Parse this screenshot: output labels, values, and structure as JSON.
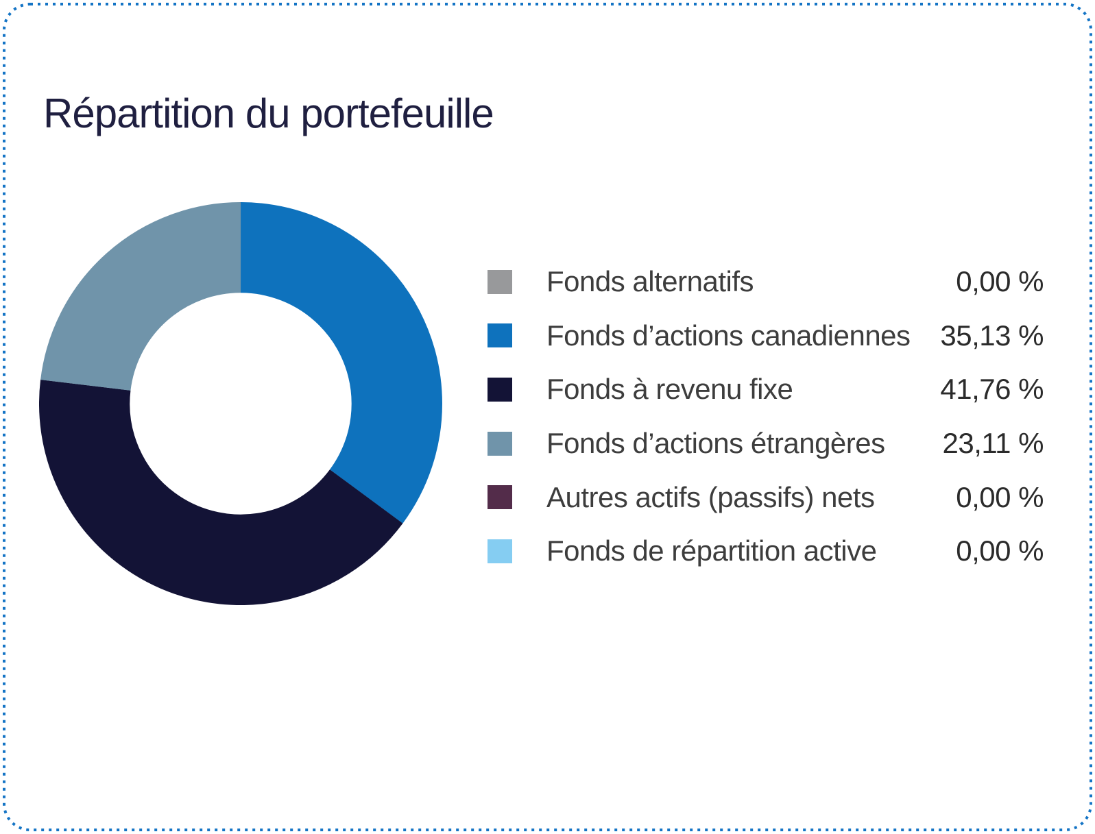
{
  "page": {
    "title": "Répartition du portefeuille"
  },
  "chart_data": {
    "type": "pie",
    "subtype": "donut",
    "title": "Répartition du portefeuille",
    "unit": "%",
    "start_angle_deg": 0,
    "direction": "clockwise",
    "hole_ratio": 0.55,
    "legend_position": "right",
    "series": [
      {
        "label": "Fonds alternatifs",
        "value": 0.0,
        "value_display": "0,00 %",
        "color": "#98999b"
      },
      {
        "label": "Fonds d’actions canadiennes",
        "value": 35.13,
        "value_display": "35,13 %",
        "color": "#0e72bd"
      },
      {
        "label": "Fonds à revenu fixe",
        "value": 41.76,
        "value_display": "41,76 %",
        "color": "#131336"
      },
      {
        "label": "Fonds d’actions étrangères",
        "value": 23.11,
        "value_display": "23,11 %",
        "color": "#7094aa"
      },
      {
        "label": "Autres actifs (passifs) nets",
        "value": 0.0,
        "value_display": "0,00 %",
        "color": "#532c4a"
      },
      {
        "label": "Fonds de répartition active",
        "value": 0.0,
        "value_display": "0,00 %",
        "color": "#85cdf2"
      }
    ]
  },
  "style": {
    "background": "#ffffff",
    "border_dot_color": "#1474c5",
    "title_color": "#1f1f40",
    "label_color": "#3d3d3d",
    "value_color": "#2b2b2b"
  }
}
